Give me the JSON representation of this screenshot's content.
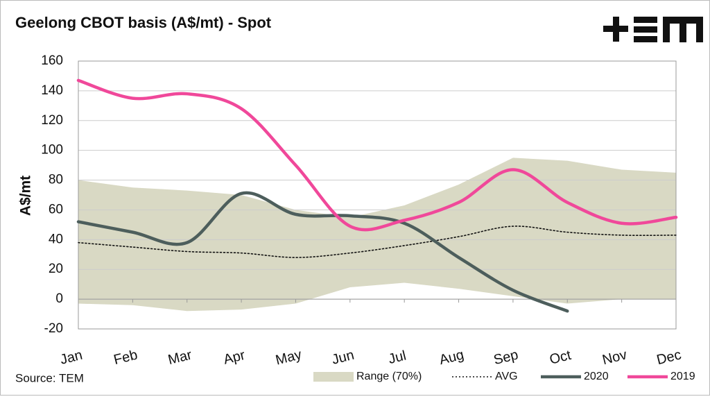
{
  "chart_data": {
    "type": "line",
    "title": "Geelong CBOT basis (A$/mt) - Spot",
    "y_label": "A$/mt",
    "source": "Source: TEM",
    "categories": [
      "Jan",
      "Feb",
      "Mar",
      "Apr",
      "May",
      "Jun",
      "Jul",
      "Aug",
      "Sep",
      "Oct",
      "Nov",
      "Dec"
    ],
    "ylim": [
      -20,
      160
    ],
    "yticks": [
      -20,
      0,
      20,
      40,
      60,
      80,
      100,
      120,
      140,
      160
    ],
    "grid": true,
    "series": [
      {
        "name": "Range (70%)",
        "color": "#d9d9c4",
        "values": [
          80,
          75,
          73,
          70,
          60,
          55,
          63,
          77,
          95,
          93,
          87,
          85
        ],
        "low": [
          -3,
          -4,
          -8,
          -7,
          -3,
          8,
          11,
          7,
          2,
          -3,
          0,
          0
        ]
      },
      {
        "name": "AVG",
        "color": "#111111",
        "values": [
          38,
          35,
          32,
          31,
          28,
          31,
          36,
          42,
          49,
          45,
          43,
          43
        ]
      },
      {
        "name": "2020",
        "color": "#4d5e5c",
        "values": [
          52,
          45,
          38,
          71,
          57,
          56,
          51,
          28,
          6,
          -8,
          null,
          null
        ]
      },
      {
        "name": "2019",
        "color": "#f0489a",
        "values": [
          147,
          135,
          138,
          128,
          90,
          49,
          53,
          65,
          87,
          65,
          51,
          55
        ]
      }
    ]
  }
}
